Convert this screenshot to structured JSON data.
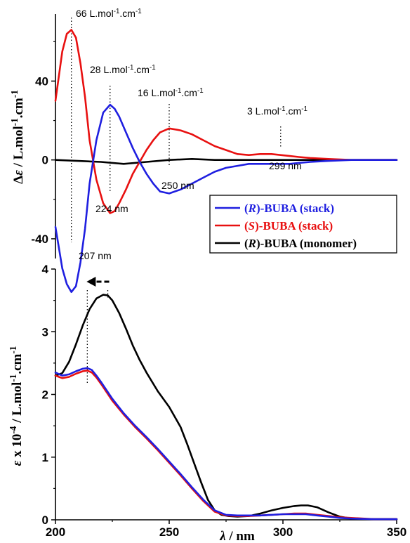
{
  "chart_data": [
    {
      "type": "line",
      "panel": "top",
      "ylabel": "Δε / L.mol⁻¹.cm⁻¹",
      "ylabel_parts": [
        "Δ",
        "ε",
        " / L.mol",
        "-1",
        ".cm",
        "-1"
      ],
      "xlim": [
        200,
        350
      ],
      "ylim": [
        -50,
        74
      ],
      "y_ticks": [
        {
          "value": 40,
          "label": "40"
        },
        {
          "value": 0,
          "label": "0"
        },
        {
          "value": -40,
          "label": "-40"
        }
      ],
      "series": [
        {
          "name": "(R)-BUBA (stack)",
          "name_parts": [
            "(",
            "R",
            ")-BUBA (stack)"
          ],
          "color": "#1f1fe0",
          "x": [
            200,
            203,
            205,
            207,
            209,
            211,
            213,
            215,
            218,
            221,
            224,
            226,
            228,
            231,
            234,
            237,
            240,
            243,
            246,
            250,
            255,
            260,
            265,
            270,
            275,
            280,
            285,
            290,
            295,
            299,
            303,
            307,
            312,
            320,
            330,
            340,
            350
          ],
          "y": [
            -34,
            -55,
            -63,
            -67,
            -64,
            -52,
            -35,
            -12,
            10,
            24,
            28,
            26,
            22,
            14,
            6,
            -1,
            -7,
            -12,
            -16,
            -17,
            -15,
            -12,
            -9,
            -6,
            -4,
            -3,
            -2,
            -2,
            -2,
            -2,
            -2,
            -1.5,
            -1,
            -0.5,
            0,
            0,
            0
          ]
        },
        {
          "name": "(S)-BUBA (stack)",
          "name_parts": [
            "(",
            "S",
            ")-BUBA (stack)"
          ],
          "color": "#e81010",
          "x": [
            200,
            203,
            205,
            207,
            209,
            211,
            213,
            215,
            218,
            221,
            224,
            226,
            228,
            231,
            234,
            237,
            240,
            243,
            246,
            250,
            255,
            260,
            265,
            270,
            275,
            280,
            285,
            290,
            295,
            299,
            303,
            307,
            312,
            320,
            330,
            340,
            350
          ],
          "y": [
            30,
            55,
            64,
            66,
            62,
            49,
            32,
            10,
            -10,
            -22,
            -27,
            -26,
            -22,
            -15,
            -7,
            -1,
            5,
            10,
            14,
            16,
            15,
            13,
            10,
            7,
            5,
            3,
            2.5,
            3,
            3,
            2.5,
            2,
            1.5,
            1,
            0.5,
            0,
            0,
            0
          ]
        },
        {
          "name": "(R)-BUBA (monomer)",
          "name_parts": [
            "(",
            "R",
            ")-BUBA (monomer)"
          ],
          "color": "#000000",
          "x": [
            200,
            210,
            220,
            230,
            240,
            250,
            260,
            270,
            280,
            290,
            300,
            310,
            320,
            330,
            340,
            350
          ],
          "y": [
            0,
            -0.5,
            -1,
            -2,
            -1,
            0,
            0.5,
            0,
            0,
            0,
            0,
            0,
            0,
            0,
            0,
            0
          ]
        }
      ],
      "annotations": [
        {
          "x": 207,
          "y": 66,
          "label_parts": [
            "66 L.mol",
            "-1",
            ".cm",
            "-1"
          ],
          "wavelength": "207 nm"
        },
        {
          "x": 224,
          "y": 28,
          "label_parts": [
            "28 L.mol",
            "-1",
            ".cm",
            "-1"
          ],
          "wavelength": "224 nm"
        },
        {
          "x": 250,
          "y": 16,
          "label_parts": [
            "16 L.mol",
            "-1",
            ".cm",
            "-1"
          ],
          "wavelength": "250 nm"
        },
        {
          "x": 299,
          "y": 3,
          "label_parts": [
            "3 L.mol",
            "-1",
            ".cm",
            "-1"
          ],
          "wavelength": "299 nm"
        }
      ],
      "legend": "bottom-right"
    },
    {
      "type": "line",
      "panel": "bottom",
      "xlabel": "λ / nm",
      "xlabel_parts": [
        "λ",
        " / nm"
      ],
      "ylabel": "ε x 10⁻⁴ / L.mol⁻¹.cm⁻¹",
      "ylabel_parts": [
        "ε",
        " x 10",
        "-4",
        " / L.mol",
        "-1",
        ".cm",
        "-1"
      ],
      "xlim": [
        200,
        350
      ],
      "ylim": [
        0,
        4
      ],
      "x_ticks": [
        {
          "value": 200,
          "label": "200"
        },
        {
          "value": 250,
          "label": "250"
        },
        {
          "value": 300,
          "label": "300"
        },
        {
          "value": 350,
          "label": "350"
        }
      ],
      "y_ticks": [
        {
          "value": 0,
          "label": "0"
        },
        {
          "value": 1,
          "label": "1"
        },
        {
          "value": 2,
          "label": "2"
        },
        {
          "value": 3,
          "label": "3"
        },
        {
          "value": 4,
          "label": "4"
        }
      ],
      "series": [
        {
          "name": "(R)-BUBA (stack)",
          "color": "#1f1fe0",
          "x": [
            200,
            203,
            206,
            209,
            212,
            214,
            216,
            218,
            220,
            225,
            230,
            235,
            240,
            245,
            250,
            255,
            260,
            265,
            270,
            275,
            280,
            285,
            290,
            295,
            300,
            305,
            310,
            315,
            320,
            325,
            330,
            340,
            350
          ],
          "y": [
            2.35,
            2.3,
            2.32,
            2.37,
            2.41,
            2.42,
            2.39,
            2.3,
            2.2,
            1.93,
            1.7,
            1.5,
            1.32,
            1.13,
            0.93,
            0.73,
            0.52,
            0.32,
            0.15,
            0.08,
            0.07,
            0.07,
            0.07,
            0.08,
            0.09,
            0.09,
            0.09,
            0.07,
            0.05,
            0.03,
            0.02,
            0.01,
            0.01
          ]
        },
        {
          "name": "(S)-BUBA (stack)",
          "color": "#e81010",
          "x": [
            200,
            203,
            206,
            209,
            212,
            214,
            216,
            218,
            220,
            225,
            230,
            235,
            240,
            245,
            250,
            255,
            260,
            265,
            270,
            275,
            280,
            285,
            290,
            295,
            300,
            305,
            310,
            315,
            320,
            325,
            330,
            340,
            350
          ],
          "y": [
            2.3,
            2.26,
            2.28,
            2.33,
            2.37,
            2.38,
            2.35,
            2.27,
            2.17,
            1.9,
            1.68,
            1.48,
            1.3,
            1.11,
            0.91,
            0.71,
            0.5,
            0.3,
            0.13,
            0.07,
            0.06,
            0.06,
            0.07,
            0.08,
            0.09,
            0.1,
            0.1,
            0.08,
            0.06,
            0.04,
            0.03,
            0.01,
            0.01
          ]
        },
        {
          "name": "(R)-BUBA (monomer)",
          "color": "#000000",
          "x": [
            200,
            203,
            206,
            209,
            212,
            215,
            218,
            221,
            223,
            225,
            228,
            231,
            234,
            237,
            240,
            245,
            250,
            255,
            258,
            261,
            264,
            267,
            270,
            273,
            276,
            280,
            285,
            290,
            295,
            300,
            305,
            308,
            311,
            315,
            320,
            325,
            330,
            340,
            350
          ],
          "y": [
            2.3,
            2.34,
            2.52,
            2.8,
            3.1,
            3.36,
            3.53,
            3.59,
            3.58,
            3.5,
            3.3,
            3.05,
            2.78,
            2.55,
            2.35,
            2.05,
            1.8,
            1.48,
            1.2,
            0.9,
            0.6,
            0.32,
            0.15,
            0.08,
            0.06,
            0.05,
            0.06,
            0.1,
            0.15,
            0.19,
            0.22,
            0.23,
            0.23,
            0.2,
            0.12,
            0.05,
            0.02,
            0.01,
            0.01
          ]
        }
      ],
      "annotations": [
        {
          "type": "dotted-line",
          "x": 214
        },
        {
          "type": "dotted-line",
          "x": 223
        },
        {
          "type": "arrow",
          "direction": "left",
          "from_x": 223,
          "to_x": 214,
          "y": 3.85
        }
      ]
    }
  ]
}
